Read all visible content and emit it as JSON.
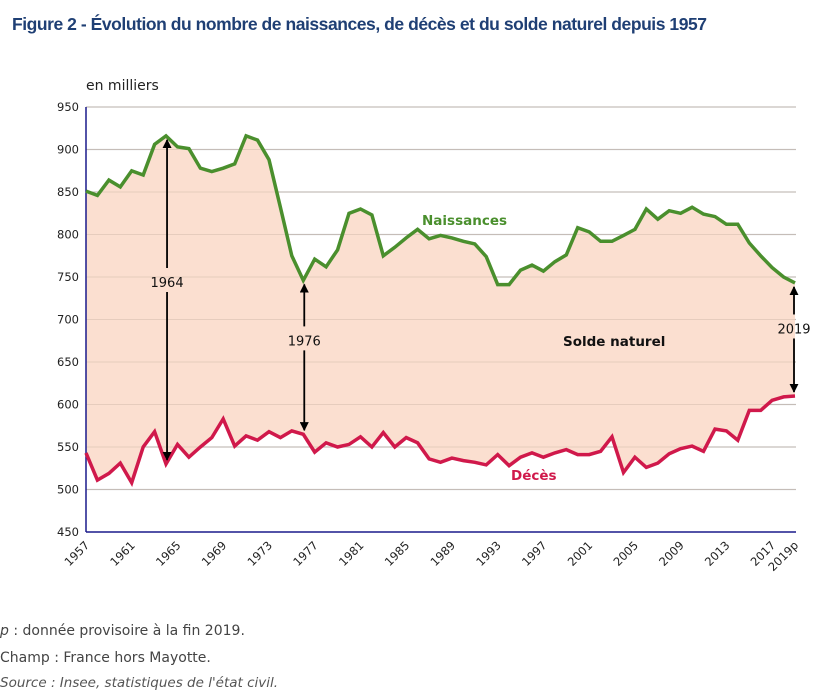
{
  "title": "Figure 2 - Évolution du nombre de naissances, de décès et du solde naturel depuis 1957",
  "footnotes": {
    "p_symbol": "p",
    "p_text": " : donnée provisoire à la fin 2019.",
    "champ": "Champ : France hors Mayotte.",
    "source": "Source : Insee, statistiques de l'état civil."
  },
  "colors": {
    "title": "#1f3f74",
    "births": "#4a8f2d",
    "deaths": "#d0194b",
    "fill": "#fbdfd0",
    "axis": "#1a1a8c",
    "grid": "#c8c8c8"
  },
  "chart_data": {
    "type": "line",
    "title": "Figure 2 - Évolution du nombre de naissances, de décès et du solde naturel depuis 1957",
    "ylabel": "en milliers",
    "xlabel": "",
    "ylim": [
      450,
      950
    ],
    "yticks": [
      450,
      500,
      550,
      600,
      650,
      700,
      750,
      800,
      850,
      900,
      950
    ],
    "grid": true,
    "x": [
      1957,
      1958,
      1959,
      1960,
      1961,
      1962,
      1963,
      1964,
      1965,
      1966,
      1967,
      1968,
      1969,
      1970,
      1971,
      1972,
      1973,
      1974,
      1975,
      1976,
      1977,
      1978,
      1979,
      1980,
      1981,
      1982,
      1983,
      1984,
      1985,
      1986,
      1987,
      1988,
      1989,
      1990,
      1991,
      1992,
      1993,
      1994,
      1995,
      1996,
      1997,
      1998,
      1999,
      2000,
      2001,
      2002,
      2003,
      2004,
      2005,
      2006,
      2007,
      2008,
      2009,
      2010,
      2011,
      2012,
      2013,
      2014,
      2015,
      2016,
      2017,
      2018,
      2019
    ],
    "xtick_labels": [
      "1957",
      "1961",
      "1965",
      "1969",
      "1973",
      "1977",
      "1981",
      "1985",
      "1989",
      "1993",
      "1997",
      "2001",
      "2005",
      "2009",
      "2013",
      "2017",
      "2019p"
    ],
    "xtick_years": [
      1957,
      1961,
      1965,
      1969,
      1973,
      1977,
      1981,
      1985,
      1989,
      1993,
      1997,
      2001,
      2005,
      2009,
      2013,
      2017,
      2019
    ],
    "series": [
      {
        "name": "Naissances",
        "values": [
          851,
          846,
          864,
          856,
          875,
          870,
          906,
          916,
          903,
          901,
          878,
          874,
          878,
          883,
          916,
          911,
          888,
          832,
          775,
          746,
          771,
          762,
          782,
          825,
          830,
          823,
          775,
          785,
          796,
          806,
          795,
          799,
          796,
          792,
          789,
          774,
          741,
          741,
          758,
          764,
          757,
          768,
          776,
          808,
          803,
          792,
          792,
          799,
          806,
          830,
          818,
          828,
          825,
          832,
          824,
          821,
          812,
          812,
          790,
          775,
          761,
          750,
          743
        ]
      },
      {
        "name": "Décès",
        "values": [
          543,
          511,
          519,
          531,
          508,
          550,
          568,
          530,
          553,
          538,
          550,
          561,
          583,
          551,
          563,
          558,
          568,
          561,
          569,
          565,
          544,
          555,
          550,
          553,
          562,
          550,
          567,
          550,
          561,
          555,
          536,
          532,
          537,
          534,
          532,
          529,
          541,
          528,
          538,
          543,
          538,
          543,
          547,
          541,
          541,
          545,
          562,
          520,
          538,
          526,
          531,
          542,
          548,
          551,
          545,
          571,
          569,
          558,
          593,
          593,
          605,
          609,
          610
        ]
      }
    ],
    "area_label": "Solde naturel",
    "annotations": [
      {
        "label": "1964",
        "year": 1964
      },
      {
        "label": "1976",
        "year": 1976
      },
      {
        "label": "2019",
        "year": 2019
      }
    ],
    "legend": "inline-labels"
  }
}
